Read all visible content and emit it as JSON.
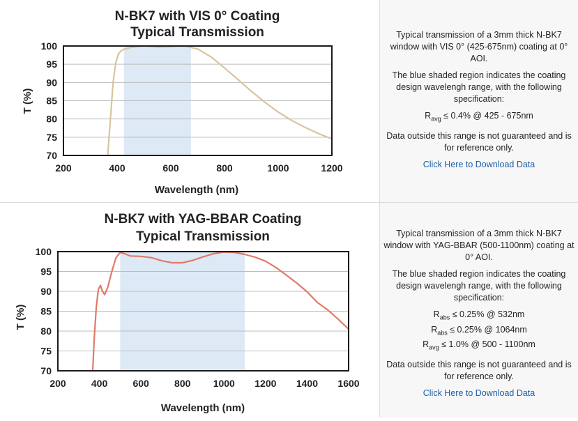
{
  "panels": [
    {
      "description": "Typical transmission of a 3mm thick N-BK7 window with VIS 0° (425-675nm) coating at 0° AOI.",
      "shaded_note": "The blue shaded region indicates the coating design wavelengh range, with the following specification:",
      "specs": [
        {
          "symbol": "R",
          "sub": "avg",
          "text": " ≤ 0.4% @ 425 - 675nm"
        }
      ],
      "disclaimer": "Data outside this range is not guaranteed and is for reference only.",
      "download_label": "Click Here to Download Data"
    },
    {
      "description": "Typical transmission of a 3mm thick N-BK7 window with YAG-BBAR (500-1100nm) coating at 0° AOI.",
      "shaded_note": "The blue shaded region indicates the coating design wavelengh range, with the following specification:",
      "specs": [
        {
          "symbol": "R",
          "sub": "abs",
          "text": " ≤ 0.25% @ 532nm"
        },
        {
          "symbol": "R",
          "sub": "abs",
          "text": " ≤ 0.25% @ 1064nm"
        },
        {
          "symbol": "R",
          "sub": "avg",
          "text": " ≤ 1.0% @ 500 - 1100nm"
        }
      ],
      "disclaimer": "Data outside this range is not guaranteed and is for reference only.",
      "download_label": "Click Here to Download Data"
    }
  ],
  "chart_data": [
    {
      "type": "line",
      "title": "N-BK7 with VIS 0° Coating",
      "subtitle": "Typical Transmission",
      "xlabel": "Wavelength (nm)",
      "ylabel": "T (%)",
      "xlim": [
        200,
        1200
      ],
      "ylim": [
        70,
        100
      ],
      "xticks": [
        200,
        400,
        600,
        800,
        1000,
        1200
      ],
      "yticks": [
        70,
        75,
        80,
        85,
        90,
        95,
        100
      ],
      "grid": true,
      "shaded_range": [
        425,
        675
      ],
      "shade_color": "#dde9f5",
      "line_color": "#d8c4a0",
      "series": [
        {
          "x": [
            365,
            375,
            385,
            395,
            405,
            415,
            425,
            450,
            500,
            550,
            600,
            650,
            700,
            750,
            800,
            850,
            900,
            950,
            1000,
            1050,
            1100,
            1150,
            1200
          ],
          "y": [
            70,
            80,
            90,
            95.5,
            97.8,
            98.7,
            99.1,
            99.6,
            100,
            99.7,
            99.8,
            100,
            99.2,
            97,
            94,
            90.8,
            87.6,
            84.6,
            81.9,
            79.6,
            77.7,
            76,
            74.5
          ]
        }
      ]
    },
    {
      "type": "line",
      "title": "N-BK7 with YAG-BBAR Coating",
      "subtitle": "Typical Transmission",
      "xlabel": "Wavelength (nm)",
      "ylabel": "T (%)",
      "xlim": [
        200,
        1600
      ],
      "ylim": [
        70,
        100
      ],
      "xticks": [
        200,
        400,
        600,
        800,
        1000,
        1200,
        1400,
        1600
      ],
      "yticks": [
        70,
        75,
        80,
        85,
        90,
        95,
        100
      ],
      "grid": true,
      "shaded_range": [
        500,
        1100
      ],
      "shade_color": "#dde9f5",
      "line_color": "#e07a68",
      "series": [
        {
          "x": [
            368,
            375,
            385,
            395,
            405,
            415,
            425,
            440,
            460,
            480,
            500,
            520,
            550,
            600,
            650,
            700,
            750,
            800,
            850,
            900,
            950,
            1000,
            1050,
            1100,
            1150,
            1200,
            1250,
            1300,
            1350,
            1400,
            1450,
            1500,
            1550,
            1600
          ],
          "y": [
            70,
            78,
            86,
            90.5,
            91.5,
            90,
            89.2,
            91,
            95,
            98.5,
            99.8,
            99.5,
            98.9,
            98.8,
            98.5,
            97.7,
            97.2,
            97.2,
            97.8,
            98.7,
            99.5,
            99.9,
            99.8,
            99.3,
            98.6,
            97.6,
            96,
            94.1,
            92.1,
            89.9,
            87.2,
            85.3,
            83,
            80.5
          ]
        }
      ]
    }
  ]
}
